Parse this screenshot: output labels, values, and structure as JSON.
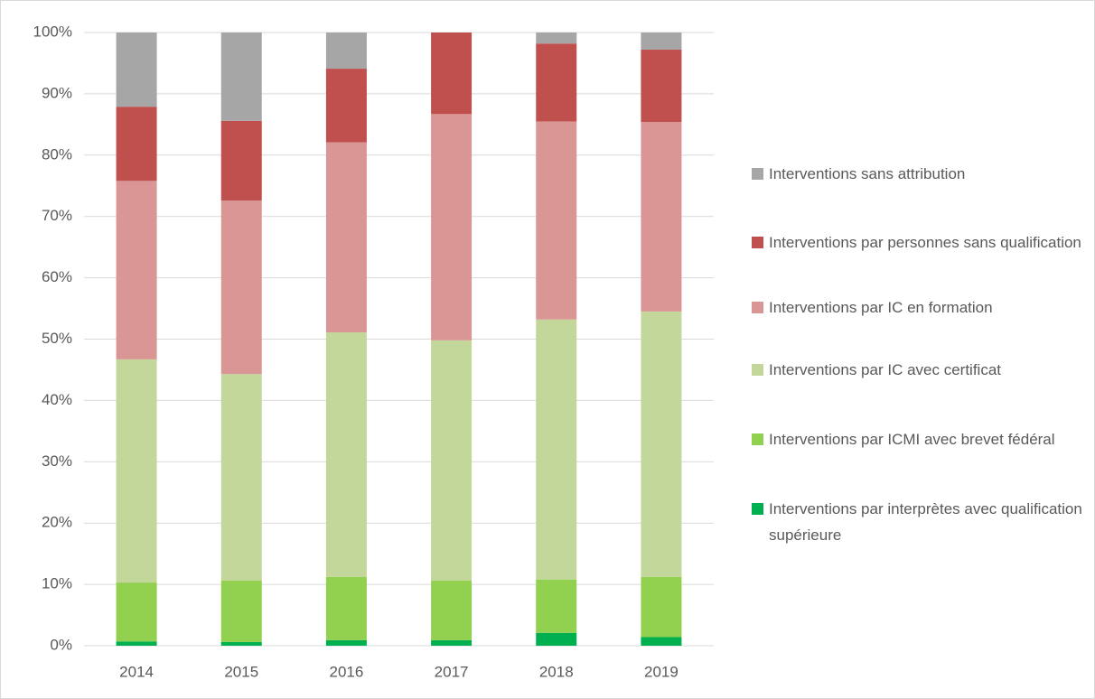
{
  "chart_data": {
    "type": "stacked-bar",
    "categories": [
      "2014",
      "2015",
      "2016",
      "2017",
      "2018",
      "2019"
    ],
    "series": [
      {
        "name": "Interventions par interprètes avec qualification supérieure",
        "color": "#00b050",
        "values": [
          0.7,
          0.6,
          0.9,
          0.9,
          2.1,
          1.4
        ]
      },
      {
        "name": "Interventions par ICMI avec brevet fédéral",
        "color": "#92d050",
        "values": [
          9.6,
          10.0,
          10.3,
          9.7,
          8.7,
          9.8
        ]
      },
      {
        "name": "Interventions par IC avec certificat",
        "color": "#c4d79b",
        "values": [
          36.4,
          33.7,
          39.9,
          39.2,
          42.4,
          43.3
        ]
      },
      {
        "name": "Interventions par IC en formation",
        "color": "#da9694",
        "values": [
          29.1,
          28.3,
          31.0,
          36.9,
          32.3,
          30.9
        ]
      },
      {
        "name": "Interventions par personnes sans qualification",
        "color": "#c0504d",
        "values": [
          12.1,
          13.0,
          12.0,
          13.3,
          12.7,
          11.8
        ]
      },
      {
        "name": "Interventions sans attribution",
        "color": "#a6a6a6",
        "values": [
          12.1,
          14.4,
          5.9,
          0,
          1.8,
          2.8
        ]
      }
    ],
    "ylim": [
      0,
      100
    ],
    "yticks": [
      {
        "value": 0,
        "label": "0%"
      },
      {
        "value": 10,
        "label": "10%"
      },
      {
        "value": 20,
        "label": "20%"
      },
      {
        "value": 30,
        "label": "30%"
      },
      {
        "value": 40,
        "label": "40%"
      },
      {
        "value": 50,
        "label": "50%"
      },
      {
        "value": 60,
        "label": "60%"
      },
      {
        "value": 70,
        "label": "70%"
      },
      {
        "value": 80,
        "label": "80%"
      },
      {
        "value": 90,
        "label": "90%"
      },
      {
        "value": 100,
        "label": "100%"
      }
    ],
    "grid": true,
    "legend": "right"
  }
}
